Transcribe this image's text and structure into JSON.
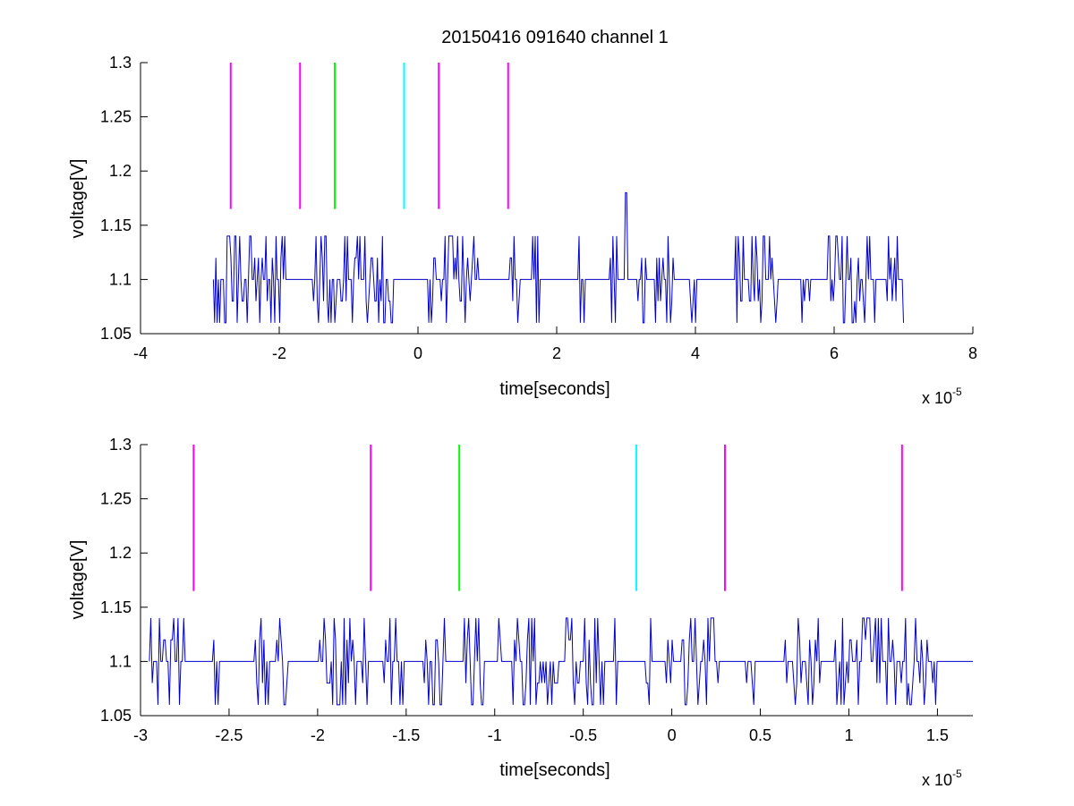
{
  "figure": {
    "title": "20150416 091640 channel 1"
  },
  "chart_data": [
    {
      "type": "line",
      "title": "20150416 091640 channel 1",
      "xlabel": "time[seconds]",
      "ylabel": "voltage[V]",
      "x_exponent_base": "x 10",
      "x_exponent_power": "-5",
      "xlim": [
        -4e-05,
        8e-05
      ],
      "ylim": [
        1.05,
        1.3
      ],
      "x_ticks": [
        -4e-05,
        -2e-05,
        0,
        2e-05,
        4e-05,
        6e-05,
        8e-05
      ],
      "x_tick_labels": [
        "-4",
        "-2",
        "0",
        "2",
        "4",
        "6",
        "8"
      ],
      "y_ticks": [
        1.05,
        1.1,
        1.15,
        1.2,
        1.25,
        1.3
      ],
      "y_tick_labels": [
        "1.05",
        "1.1",
        "1.15",
        "1.2",
        "1.25",
        "1.3"
      ],
      "grid": false,
      "signal": {
        "color": "#0000cc",
        "x_start": -2.95e-05,
        "x_end": 7e-05,
        "levels": [
          1.06,
          1.08,
          1.1,
          1.12,
          1.14
        ],
        "baseline": 1.1,
        "peak": {
          "x": 3e-05,
          "y": 1.18
        }
      },
      "markers": [
        {
          "x": -2.7e-05,
          "y_from": 1.165,
          "y_to": 1.3,
          "color": "#ff00ff"
        },
        {
          "x": -1.7e-05,
          "y_from": 1.165,
          "y_to": 1.3,
          "color": "#ff00ff"
        },
        {
          "x": -1.2e-05,
          "y_from": 1.165,
          "y_to": 1.3,
          "color": "#00ff00"
        },
        {
          "x": -2e-06,
          "y_from": 1.165,
          "y_to": 1.3,
          "color": "#00ffff"
        },
        {
          "x": 3e-06,
          "y_from": 1.165,
          "y_to": 1.3,
          "color": "#ff00ff"
        },
        {
          "x": 1.3e-05,
          "y_from": 1.165,
          "y_to": 1.3,
          "color": "#ff00ff"
        }
      ]
    },
    {
      "type": "line",
      "title": "",
      "xlabel": "time[seconds]",
      "ylabel": "voltage[V]",
      "x_exponent_base": "x 10",
      "x_exponent_power": "-5",
      "xlim": [
        -3e-05,
        1.7e-05
      ],
      "ylim": [
        1.05,
        1.3
      ],
      "x_ticks": [
        -3e-05,
        -2.5e-05,
        -2e-05,
        -1.5e-05,
        -1e-05,
        -5e-06,
        0,
        5e-06,
        1e-05,
        1.5e-05
      ],
      "x_tick_labels": [
        "-3",
        "-2.5",
        "-2",
        "-1.5",
        "-1",
        "-0.5",
        "0",
        "0.5",
        "1",
        "1.5"
      ],
      "y_ticks": [
        1.05,
        1.1,
        1.15,
        1.2,
        1.25,
        1.3
      ],
      "y_tick_labels": [
        "1.05",
        "1.1",
        "1.15",
        "1.2",
        "1.25",
        "1.3"
      ],
      "grid": false,
      "signal": {
        "color": "#0000cc",
        "x_start": -2.95e-05,
        "x_end": 1.7e-05,
        "levels": [
          1.06,
          1.08,
          1.1,
          1.12,
          1.14
        ],
        "baseline": 1.1
      },
      "markers": [
        {
          "x": -2.7e-05,
          "y_from": 1.165,
          "y_to": 1.3,
          "color": "#ff00ff"
        },
        {
          "x": -1.7e-05,
          "y_from": 1.165,
          "y_to": 1.3,
          "color": "#ff00ff"
        },
        {
          "x": -1.2e-05,
          "y_from": 1.165,
          "y_to": 1.3,
          "color": "#00ff00"
        },
        {
          "x": -2e-06,
          "y_from": 1.165,
          "y_to": 1.3,
          "color": "#00ffff"
        },
        {
          "x": 3e-06,
          "y_from": 1.165,
          "y_to": 1.3,
          "color": "#ff00ff"
        },
        {
          "x": 1.3e-05,
          "y_from": 1.165,
          "y_to": 1.3,
          "color": "#ff00ff"
        }
      ]
    }
  ]
}
